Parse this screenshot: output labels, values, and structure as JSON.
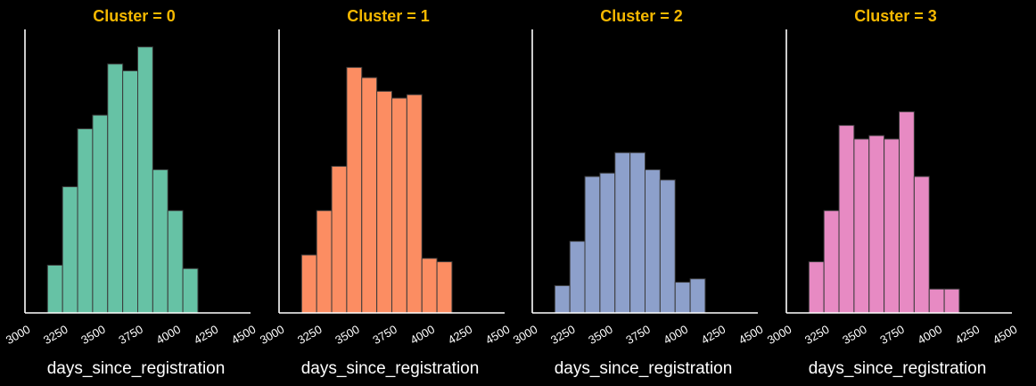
{
  "chart_data": {
    "type": "bar",
    "title_color": "#f5b800",
    "axis_color": "#ffffff",
    "edge_color": "#3a3a3a",
    "xlim": [
      3000,
      4500
    ],
    "xticks": [
      3000,
      3250,
      3500,
      3750,
      4000,
      4250,
      4500
    ],
    "xtick_labels": [
      "3000",
      "3250",
      "3500",
      "3750",
      "4000",
      "4250",
      "4500"
    ],
    "ylim": [
      0,
      100
    ],
    "bin_width": 100,
    "panels": [
      {
        "title": "Cluster = 0",
        "xlabel": "days_since_registration",
        "color": "#66c2a5",
        "bin_start": 3150,
        "values": [
          14,
          37,
          54,
          58,
          73,
          71,
          78,
          42,
          30,
          13
        ]
      },
      {
        "title": "Cluster = 1",
        "xlabel": "days_since_registration",
        "color": "#fc8d62",
        "bin_start": 3150,
        "values": [
          17,
          30,
          43,
          72,
          69,
          65,
          63,
          64,
          16,
          15
        ]
      },
      {
        "title": "Cluster = 2",
        "xlabel": "days_since_registration",
        "color": "#8da0cb",
        "bin_start": 3150,
        "values": [
          8,
          21,
          40,
          41,
          47,
          47,
          42,
          39,
          9,
          10
        ]
      },
      {
        "title": "Cluster = 3",
        "xlabel": "days_since_registration",
        "color": "#e78ac3",
        "bin_start": 3150,
        "values": [
          15,
          30,
          55,
          51,
          52,
          51,
          59,
          40,
          7,
          7
        ]
      }
    ]
  }
}
